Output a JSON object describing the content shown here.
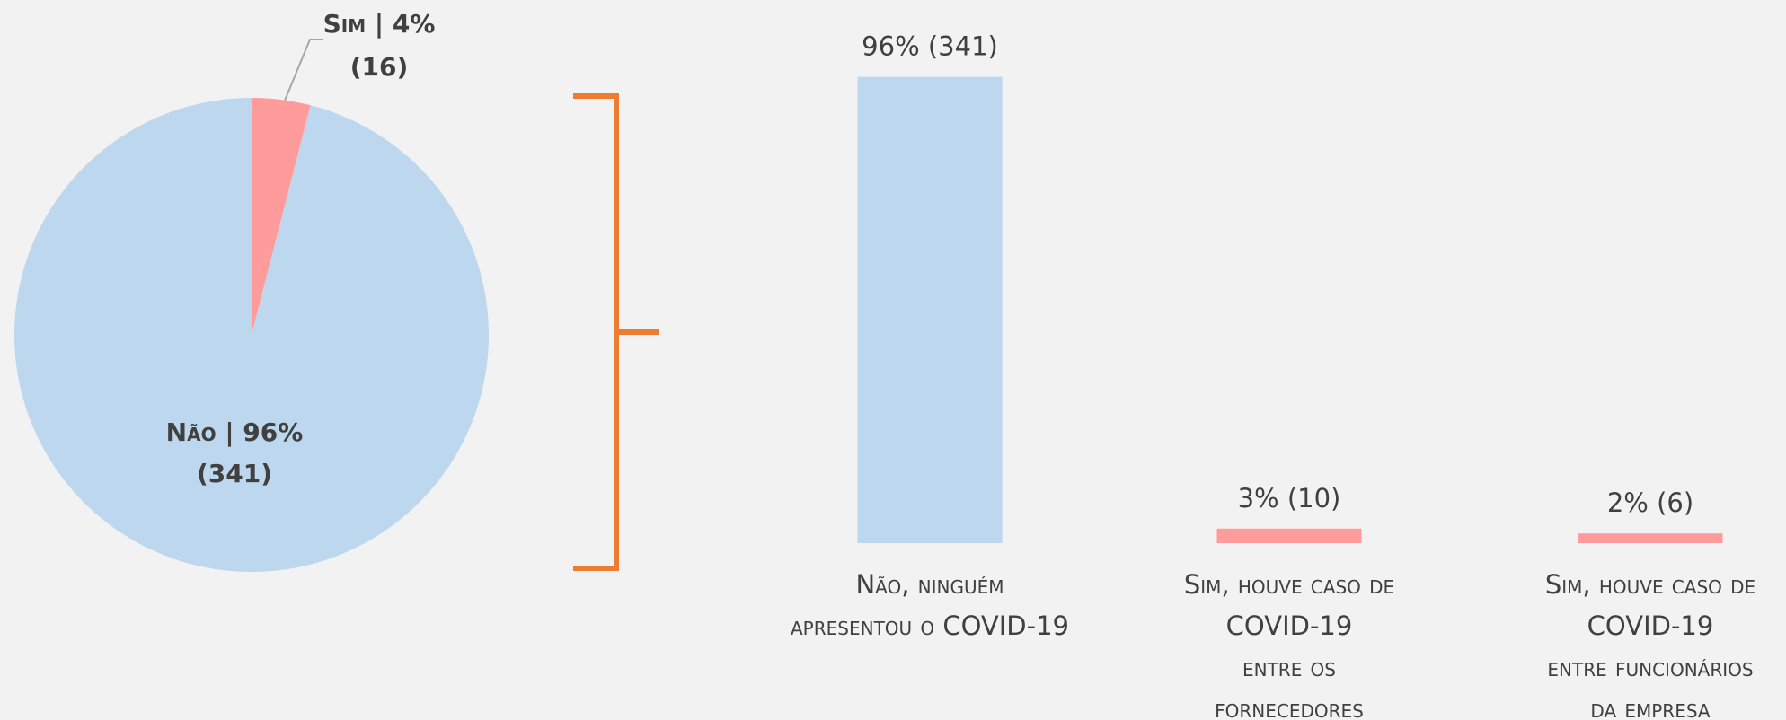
{
  "chart_data": [
    {
      "type": "pie",
      "values": [
        4,
        96
      ],
      "value_labels": [
        "Sim | 4%",
        "Não | 96%"
      ],
      "counts": [
        16,
        341
      ],
      "count_labels": [
        "(16)",
        "(341)"
      ],
      "colors": [
        "#ff9b9b",
        "#bdd7ee"
      ]
    },
    {
      "type": "bar",
      "categories": [
        [
          "Não, ninguém",
          "apresentou o COVID-19"
        ],
        [
          "Sim, houve caso de",
          "COVID-19",
          "entre os",
          "fornecedores"
        ],
        [
          "Sim, houve caso de",
          "COVID-19",
          "entre funcionários",
          "da empresa"
        ]
      ],
      "values": [
        96,
        3,
        2
      ],
      "counts": [
        341,
        10,
        6
      ],
      "value_labels": [
        "96% (341)",
        "3% (10)",
        "2% (6)"
      ],
      "colors": [
        "#bdd7ee",
        "#ff9b9b",
        "#ff9b9b"
      ]
    }
  ]
}
